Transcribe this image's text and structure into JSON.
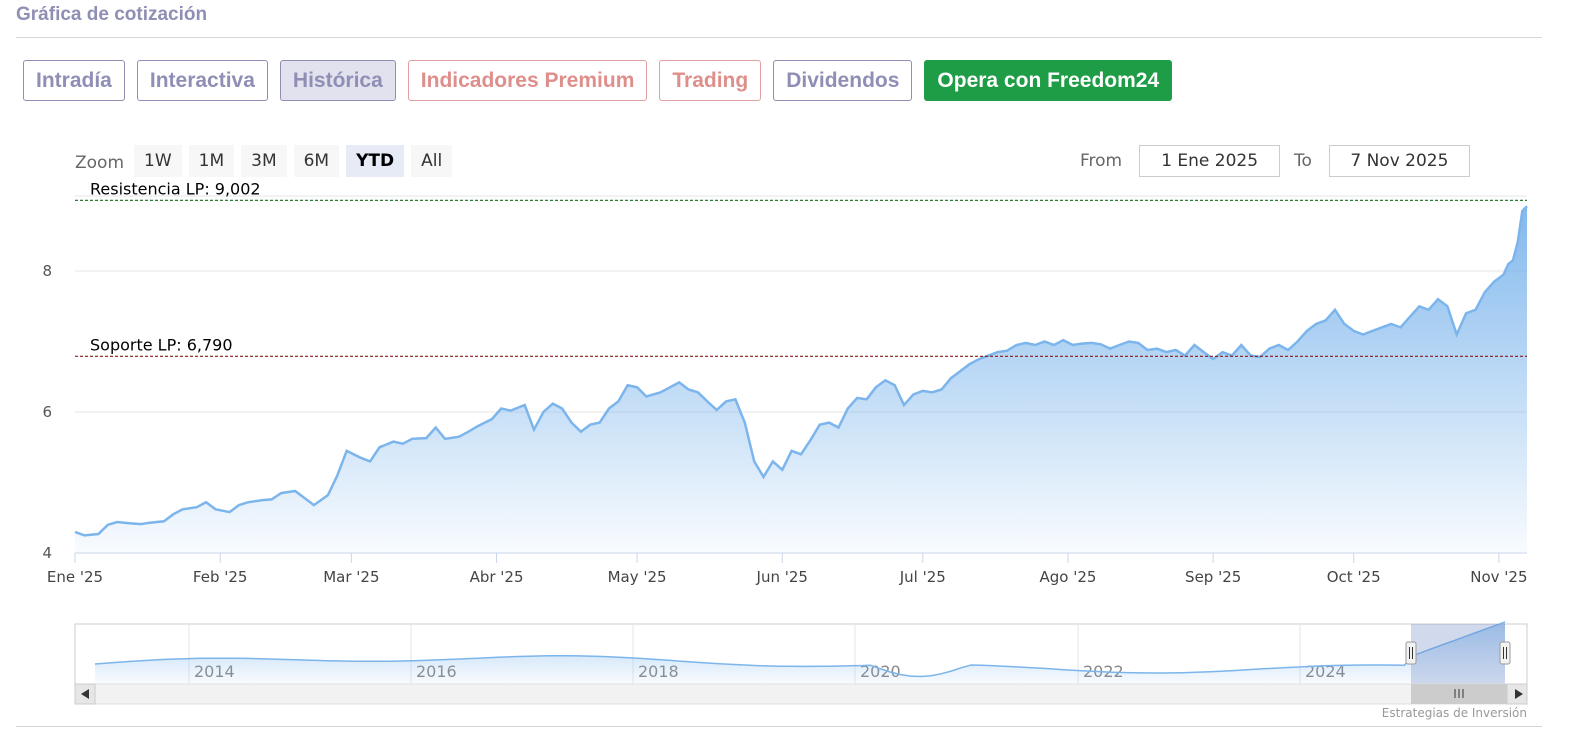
{
  "section": {
    "title": "Gráfica de cotización"
  },
  "tabs": [
    {
      "label": "Intradía",
      "style": "normal"
    },
    {
      "label": "Interactiva",
      "style": "normal"
    },
    {
      "label": "Histórica",
      "style": "active"
    },
    {
      "label": "Indicadores Premium",
      "style": "premium"
    },
    {
      "label": "Trading",
      "style": "premium"
    },
    {
      "label": "Dividendos",
      "style": "normal"
    },
    {
      "label": "Opera con Freedom24",
      "style": "cta"
    }
  ],
  "zoom": {
    "label": "Zoom",
    "buttons": [
      "1W",
      "1M",
      "3M",
      "6M",
      "YTD",
      "All"
    ],
    "active": "YTD"
  },
  "range": {
    "from_label": "From",
    "from_value": "1 Ene 2025",
    "to_label": "To",
    "to_value": "7 Nov 2025"
  },
  "credits": "Estrategias de Inversión",
  "colors": {
    "accent": "#8f8fb5",
    "premium": "#de8f8c",
    "cta": "#1f9d46",
    "series": "#7cb5ec",
    "resistance": "#2e7d32",
    "support": "#8b1a1a"
  },
  "chart_data": {
    "type": "area",
    "title": "",
    "ylim": [
      4,
      9.05
    ],
    "yticks": [
      4,
      6,
      8
    ],
    "x_ticks": [
      "Ene '25",
      "Feb '25",
      "Mar '25",
      "Abr '25",
      "May '25",
      "Jun '25",
      "Jul '25",
      "Ago '25",
      "Sep '25",
      "Oct '25",
      "Nov '25"
    ],
    "x_tick_dates": [
      "2025-01-01",
      "2025-02-01",
      "2025-03-01",
      "2025-04-01",
      "2025-05-01",
      "2025-06-01",
      "2025-07-01",
      "2025-08-01",
      "2025-09-01",
      "2025-10-01",
      "2025-11-01"
    ],
    "x_range": [
      "2025-01-01",
      "2025-11-07"
    ],
    "grid": true,
    "reference_lines": [
      {
        "label": "Resistencia LP: 9,002",
        "value": 9.002,
        "color": "#2e7d32"
      },
      {
        "label": "Soporte LP: 6,790",
        "value": 6.79,
        "color": "#8b1a1a"
      }
    ],
    "series": [
      {
        "points": [
          [
            "2025-01-01",
            4.3
          ],
          [
            "2025-01-03",
            4.25
          ],
          [
            "2025-01-06",
            4.27
          ],
          [
            "2025-01-08",
            4.4
          ],
          [
            "2025-01-10",
            4.44
          ],
          [
            "2025-01-13",
            4.42
          ],
          [
            "2025-01-15",
            4.41
          ],
          [
            "2025-01-17",
            4.43
          ],
          [
            "2025-01-20",
            4.45
          ],
          [
            "2025-01-22",
            4.55
          ],
          [
            "2025-01-24",
            4.62
          ],
          [
            "2025-01-27",
            4.65
          ],
          [
            "2025-01-29",
            4.72
          ],
          [
            "2025-01-31",
            4.62
          ],
          [
            "2025-02-03",
            4.58
          ],
          [
            "2025-02-05",
            4.68
          ],
          [
            "2025-02-07",
            4.72
          ],
          [
            "2025-02-10",
            4.75
          ],
          [
            "2025-02-12",
            4.76
          ],
          [
            "2025-02-14",
            4.85
          ],
          [
            "2025-02-17",
            4.88
          ],
          [
            "2025-02-19",
            4.78
          ],
          [
            "2025-02-21",
            4.68
          ],
          [
            "2025-02-24",
            4.82
          ],
          [
            "2025-02-26",
            5.1
          ],
          [
            "2025-02-28",
            5.45
          ],
          [
            "2025-03-03",
            5.35
          ],
          [
            "2025-03-05",
            5.3
          ],
          [
            "2025-03-07",
            5.5
          ],
          [
            "2025-03-10",
            5.58
          ],
          [
            "2025-03-12",
            5.55
          ],
          [
            "2025-03-14",
            5.62
          ],
          [
            "2025-03-17",
            5.63
          ],
          [
            "2025-03-19",
            5.78
          ],
          [
            "2025-03-21",
            5.62
          ],
          [
            "2025-03-24",
            5.65
          ],
          [
            "2025-03-26",
            5.72
          ],
          [
            "2025-03-28",
            5.8
          ],
          [
            "2025-03-31",
            5.9
          ],
          [
            "2025-04-02",
            6.05
          ],
          [
            "2025-04-04",
            6.02
          ],
          [
            "2025-04-07",
            6.1
          ],
          [
            "2025-04-09",
            5.75
          ],
          [
            "2025-04-11",
            6.0
          ],
          [
            "2025-04-13",
            6.12
          ],
          [
            "2025-04-15",
            6.05
          ],
          [
            "2025-04-17",
            5.85
          ],
          [
            "2025-04-19",
            5.72
          ],
          [
            "2025-04-21",
            5.82
          ],
          [
            "2025-04-23",
            5.85
          ],
          [
            "2025-04-25",
            6.05
          ],
          [
            "2025-04-27",
            6.15
          ],
          [
            "2025-04-29",
            6.38
          ],
          [
            "2025-05-01",
            6.35
          ],
          [
            "2025-05-03",
            6.22
          ],
          [
            "2025-05-06",
            6.28
          ],
          [
            "2025-05-08",
            6.35
          ],
          [
            "2025-05-10",
            6.42
          ],
          [
            "2025-05-12",
            6.32
          ],
          [
            "2025-05-14",
            6.28
          ],
          [
            "2025-05-16",
            6.15
          ],
          [
            "2025-05-18",
            6.03
          ],
          [
            "2025-05-20",
            6.15
          ],
          [
            "2025-05-22",
            6.18
          ],
          [
            "2025-05-24",
            5.85
          ],
          [
            "2025-05-26",
            5.3
          ],
          [
            "2025-05-28",
            5.08
          ],
          [
            "2025-05-30",
            5.3
          ],
          [
            "2025-06-01",
            5.18
          ],
          [
            "2025-06-03",
            5.45
          ],
          [
            "2025-06-05",
            5.4
          ],
          [
            "2025-06-07",
            5.6
          ],
          [
            "2025-06-09",
            5.82
          ],
          [
            "2025-06-11",
            5.85
          ],
          [
            "2025-06-13",
            5.78
          ],
          [
            "2025-06-15",
            6.05
          ],
          [
            "2025-06-17",
            6.2
          ],
          [
            "2025-06-19",
            6.18
          ],
          [
            "2025-06-21",
            6.35
          ],
          [
            "2025-06-23",
            6.45
          ],
          [
            "2025-06-25",
            6.38
          ],
          [
            "2025-06-27",
            6.1
          ],
          [
            "2025-06-29",
            6.25
          ],
          [
            "2025-07-01",
            6.3
          ],
          [
            "2025-07-03",
            6.28
          ],
          [
            "2025-07-05",
            6.32
          ],
          [
            "2025-07-07",
            6.48
          ],
          [
            "2025-07-09",
            6.58
          ],
          [
            "2025-07-11",
            6.68
          ],
          [
            "2025-07-13",
            6.75
          ],
          [
            "2025-07-15",
            6.8
          ],
          [
            "2025-07-17",
            6.85
          ],
          [
            "2025-07-19",
            6.87
          ],
          [
            "2025-07-21",
            6.95
          ],
          [
            "2025-07-23",
            6.98
          ],
          [
            "2025-07-25",
            6.95
          ],
          [
            "2025-07-27",
            7.0
          ],
          [
            "2025-07-29",
            6.95
          ],
          [
            "2025-07-31",
            7.02
          ],
          [
            "2025-08-02",
            6.95
          ],
          [
            "2025-08-04",
            6.97
          ],
          [
            "2025-08-06",
            6.98
          ],
          [
            "2025-08-08",
            6.96
          ],
          [
            "2025-08-10",
            6.9
          ],
          [
            "2025-08-12",
            6.95
          ],
          [
            "2025-08-14",
            7.0
          ],
          [
            "2025-08-16",
            6.98
          ],
          [
            "2025-08-18",
            6.88
          ],
          [
            "2025-08-20",
            6.9
          ],
          [
            "2025-08-22",
            6.85
          ],
          [
            "2025-08-24",
            6.88
          ],
          [
            "2025-08-26",
            6.8
          ],
          [
            "2025-08-28",
            6.95
          ],
          [
            "2025-08-30",
            6.85
          ],
          [
            "2025-09-01",
            6.75
          ],
          [
            "2025-09-03",
            6.85
          ],
          [
            "2025-09-05",
            6.8
          ],
          [
            "2025-09-07",
            6.95
          ],
          [
            "2025-09-09",
            6.8
          ],
          [
            "2025-09-11",
            6.78
          ],
          [
            "2025-09-13",
            6.9
          ],
          [
            "2025-09-15",
            6.95
          ],
          [
            "2025-09-17",
            6.88
          ],
          [
            "2025-09-19",
            7.0
          ],
          [
            "2025-09-21",
            7.15
          ],
          [
            "2025-09-23",
            7.25
          ],
          [
            "2025-09-25",
            7.3
          ],
          [
            "2025-09-27",
            7.45
          ],
          [
            "2025-09-29",
            7.25
          ],
          [
            "2025-10-01",
            7.15
          ],
          [
            "2025-10-03",
            7.1
          ],
          [
            "2025-10-05",
            7.15
          ],
          [
            "2025-10-07",
            7.2
          ],
          [
            "2025-10-09",
            7.25
          ],
          [
            "2025-10-11",
            7.2
          ],
          [
            "2025-10-13",
            7.35
          ],
          [
            "2025-10-15",
            7.5
          ],
          [
            "2025-10-17",
            7.45
          ],
          [
            "2025-10-19",
            7.6
          ],
          [
            "2025-10-21",
            7.5
          ],
          [
            "2025-10-23",
            7.1
          ],
          [
            "2025-10-25",
            7.4
          ],
          [
            "2025-10-27",
            7.45
          ],
          [
            "2025-10-29",
            7.7
          ],
          [
            "2025-10-31",
            7.85
          ],
          [
            "2025-11-01",
            7.9
          ],
          [
            "2025-11-02",
            7.95
          ],
          [
            "2025-11-03",
            8.1
          ],
          [
            "2025-11-04",
            8.15
          ],
          [
            "2025-11-05",
            8.4
          ],
          [
            "2025-11-06",
            8.85
          ],
          [
            "2025-11-07",
            8.92
          ]
        ]
      }
    ],
    "navigator": {
      "year_labels": [
        "2014",
        "2016",
        "2018",
        "2020",
        "2022",
        "2024"
      ]
    }
  }
}
